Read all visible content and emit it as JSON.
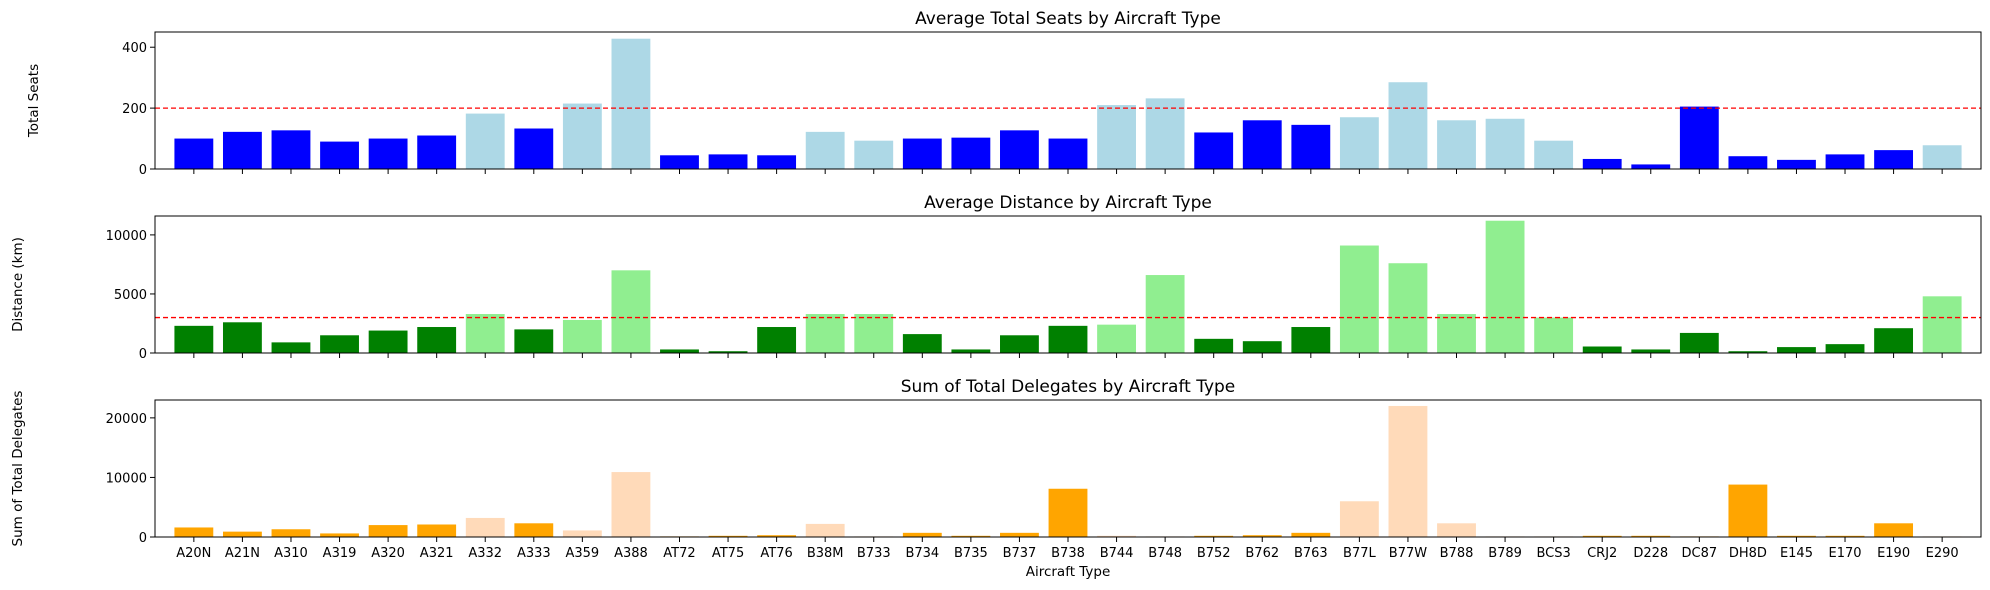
{
  "chart_data": [
    {
      "type": "bar",
      "title": "Average Total Seats by Aircraft Type",
      "xlabel": "",
      "ylabel": "Total Seats",
      "ylim": [
        0,
        450
      ],
      "yticks": [
        0,
        200,
        400
      ],
      "categories": [
        "A20N",
        "A21N",
        "A310",
        "A319",
        "A320",
        "A321",
        "A332",
        "A333",
        "A359",
        "A388",
        "AT72",
        "AT75",
        "AT76",
        "B38M",
        "B733",
        "B734",
        "B735",
        "B737",
        "B738",
        "B744",
        "B748",
        "B752",
        "B762",
        "B763",
        "B77L",
        "B77W",
        "B788",
        "B789",
        "BCS3",
        "CRJ2",
        "D228",
        "DC87",
        "DH8D",
        "E145",
        "E170",
        "E190",
        "E290"
      ],
      "values": [
        100,
        122,
        127,
        90,
        100,
        110,
        182,
        133,
        215,
        428,
        45,
        48,
        45,
        122,
        93,
        100,
        103,
        127,
        100,
        210,
        232,
        120,
        160,
        145,
        170,
        285,
        160,
        165,
        93,
        33,
        15,
        205,
        42,
        30,
        48,
        62,
        78
      ],
      "reference_line": 200,
      "colors": {
        "dark": "#0000ff",
        "light": "#add8e6",
        "reference": "#ff0000"
      },
      "highlight": [
        "dark",
        "dark",
        "dark",
        "dark",
        "dark",
        "dark",
        "light",
        "dark",
        "light",
        "light",
        "dark",
        "dark",
        "dark",
        "light",
        "light",
        "dark",
        "dark",
        "dark",
        "dark",
        "light",
        "light",
        "dark",
        "dark",
        "dark",
        "light",
        "light",
        "light",
        "light",
        "light",
        "dark",
        "dark",
        "dark",
        "dark",
        "dark",
        "dark",
        "dark",
        "light"
      ]
    },
    {
      "type": "bar",
      "title": "Average Distance by Aircraft Type",
      "xlabel": "",
      "ylabel": "Distance (km)",
      "ylim": [
        0,
        11600
      ],
      "yticks": [
        0,
        5000,
        10000
      ],
      "categories": [
        "A20N",
        "A21N",
        "A310",
        "A319",
        "A320",
        "A321",
        "A332",
        "A333",
        "A359",
        "A388",
        "AT72",
        "AT75",
        "AT76",
        "B38M",
        "B733",
        "B734",
        "B735",
        "B737",
        "B738",
        "B744",
        "B748",
        "B752",
        "B762",
        "B763",
        "B77L",
        "B77W",
        "B788",
        "B789",
        "BCS3",
        "CRJ2",
        "D228",
        "DC87",
        "DH8D",
        "E145",
        "E170",
        "E190",
        "E290"
      ],
      "values": [
        2300,
        2600,
        900,
        1500,
        1900,
        2200,
        3300,
        2000,
        2800,
        7000,
        300,
        150,
        2200,
        3300,
        3300,
        1600,
        300,
        1500,
        2300,
        2400,
        6600,
        1200,
        1000,
        2200,
        9100,
        7600,
        3300,
        11200,
        3000,
        550,
        300,
        1700,
        150,
        500,
        750,
        2100,
        4800
      ],
      "reference_line": 3000,
      "colors": {
        "dark": "#008000",
        "light": "#90ee90",
        "reference": "#ff0000"
      },
      "highlight": [
        "dark",
        "dark",
        "dark",
        "dark",
        "dark",
        "dark",
        "light",
        "dark",
        "light",
        "light",
        "dark",
        "dark",
        "dark",
        "light",
        "light",
        "dark",
        "dark",
        "dark",
        "dark",
        "light",
        "light",
        "dark",
        "dark",
        "dark",
        "light",
        "light",
        "light",
        "light",
        "light",
        "dark",
        "dark",
        "dark",
        "dark",
        "dark",
        "dark",
        "dark",
        "light"
      ]
    },
    {
      "type": "bar",
      "title": "Sum of Total Delegates by Aircraft Type",
      "xlabel": "Aircraft Type",
      "ylabel": "Sum of Total Delegates",
      "ylim": [
        0,
        23000
      ],
      "yticks": [
        0,
        10000,
        20000
      ],
      "categories": [
        "A20N",
        "A21N",
        "A310",
        "A319",
        "A320",
        "A321",
        "A332",
        "A333",
        "A359",
        "A388",
        "AT72",
        "AT75",
        "AT76",
        "B38M",
        "B733",
        "B734",
        "B735",
        "B737",
        "B738",
        "B744",
        "B748",
        "B752",
        "B762",
        "B763",
        "B77L",
        "B77W",
        "B788",
        "B789",
        "BCS3",
        "CRJ2",
        "D228",
        "DC87",
        "DH8D",
        "E145",
        "E170",
        "E190",
        "E290"
      ],
      "values": [
        1600,
        900,
        1300,
        600,
        2000,
        2100,
        3200,
        2300,
        1100,
        10900,
        50,
        200,
        300,
        2200,
        50,
        700,
        200,
        700,
        8100,
        200,
        100,
        200,
        300,
        700,
        6000,
        22000,
        2300,
        100,
        100,
        200,
        200,
        100,
        8800,
        200,
        200,
        2300,
        50
      ],
      "colors": {
        "dark": "#ffa500",
        "light": "#ffdab9"
      },
      "highlight": [
        "dark",
        "dark",
        "dark",
        "dark",
        "dark",
        "dark",
        "light",
        "dark",
        "light",
        "light",
        "dark",
        "dark",
        "dark",
        "light",
        "light",
        "dark",
        "dark",
        "dark",
        "dark",
        "light",
        "light",
        "dark",
        "dark",
        "dark",
        "light",
        "light",
        "light",
        "light",
        "light",
        "dark",
        "dark",
        "dark",
        "dark",
        "dark",
        "dark",
        "dark",
        "light"
      ]
    }
  ]
}
